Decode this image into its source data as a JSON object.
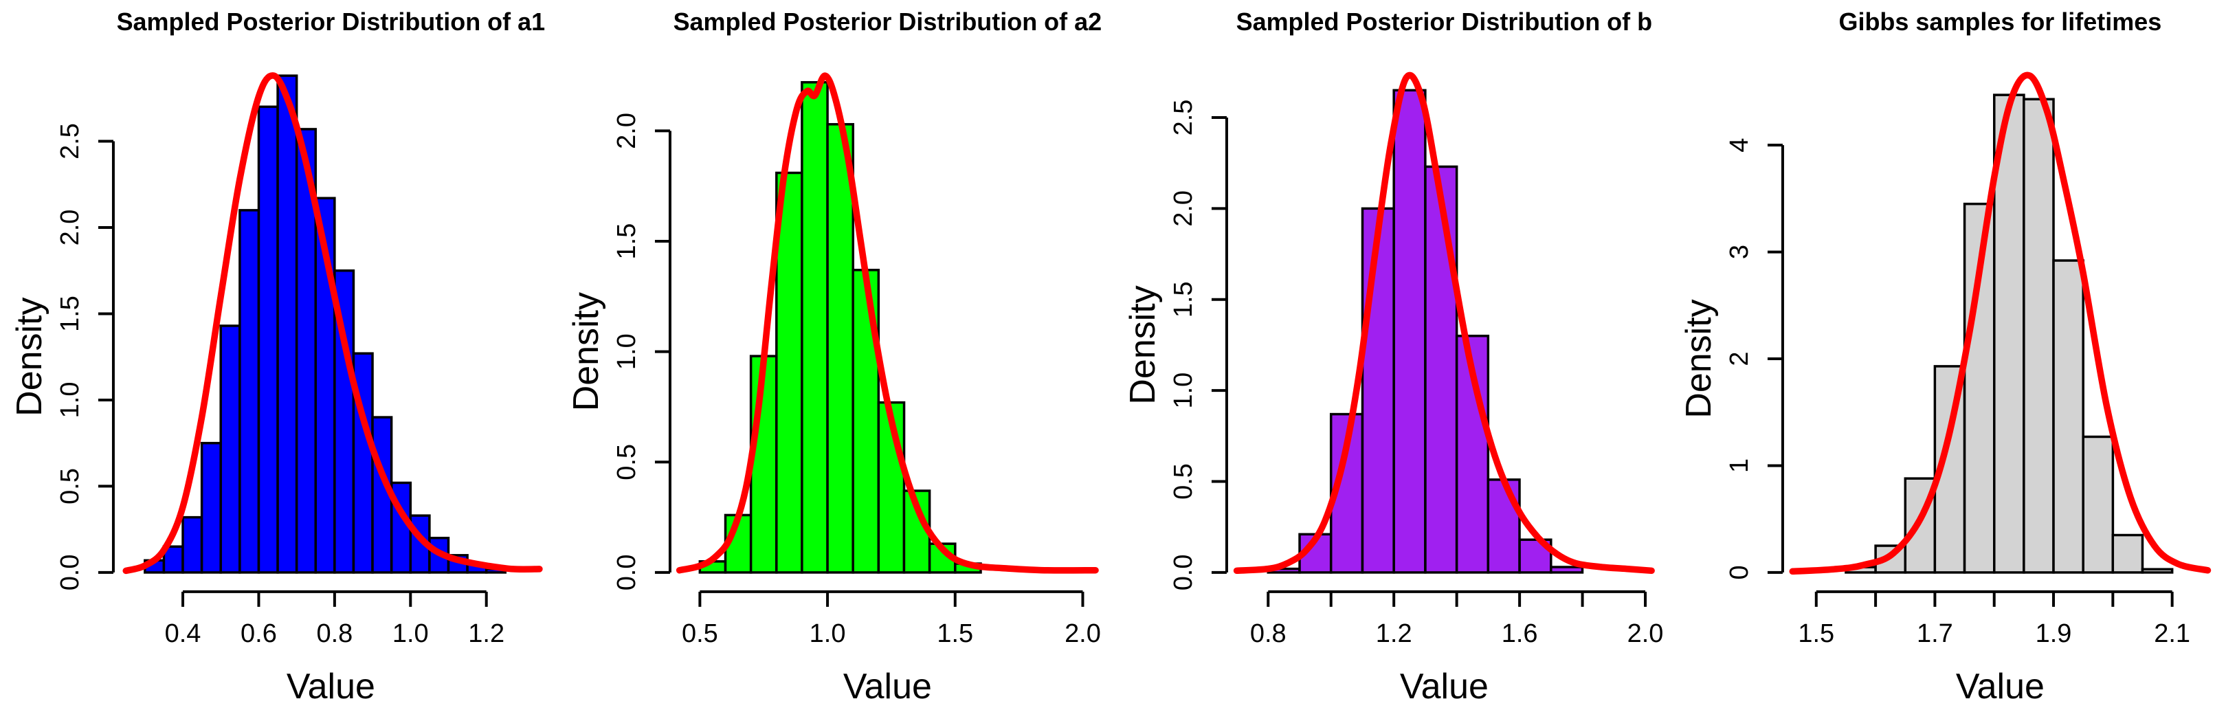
{
  "page": {
    "background": "#FFFFFF",
    "description": "Four R-style histograms with red kernel density curves"
  },
  "chart_data": [
    {
      "type": "bar",
      "subtype": "histogram-with-density",
      "title": "Sampled Posterior Distribution of a1",
      "xlabel": "Value",
      "ylabel": "Density",
      "bar_color": "#0000FF",
      "curve_color": "#FF0000",
      "axis_color": "#000000",
      "bins": {
        "start": 0.3,
        "width": 0.05
      },
      "heights": [
        0.07,
        0.15,
        0.32,
        0.75,
        1.43,
        2.1,
        2.7,
        2.88,
        2.57,
        2.17,
        1.75,
        1.27,
        0.9,
        0.52,
        0.33,
        0.2,
        0.1,
        0.05,
        0.02
      ],
      "x_ticks": [
        {
          "v": 0.4,
          "label": "0.4"
        },
        {
          "v": 0.6,
          "label": "0.6"
        },
        {
          "v": 0.8,
          "label": "0.8"
        },
        {
          "v": 1.0,
          "label": "1.0"
        },
        {
          "v": 1.2,
          "label": "1.2"
        }
      ],
      "y_ticks": [
        {
          "v": 0.0,
          "label": "0.0"
        },
        {
          "v": 0.5,
          "label": "0.5"
        },
        {
          "v": 1.0,
          "label": "1.0"
        },
        {
          "v": 1.5,
          "label": "1.5"
        },
        {
          "v": 2.0,
          "label": "2.0"
        },
        {
          "v": 2.5,
          "label": "2.5"
        }
      ],
      "x_range": [
        0.235,
        1.345
      ],
      "y_top_value": 2.88,
      "curve": [
        [
          0.25,
          0.01
        ],
        [
          0.3,
          0.04
        ],
        [
          0.35,
          0.13
        ],
        [
          0.4,
          0.38
        ],
        [
          0.45,
          0.9
        ],
        [
          0.5,
          1.6
        ],
        [
          0.55,
          2.28
        ],
        [
          0.6,
          2.76
        ],
        [
          0.64,
          2.88
        ],
        [
          0.68,
          2.72
        ],
        [
          0.72,
          2.42
        ],
        [
          0.76,
          2.02
        ],
        [
          0.8,
          1.6
        ],
        [
          0.85,
          1.1
        ],
        [
          0.9,
          0.72
        ],
        [
          0.95,
          0.45
        ],
        [
          1.0,
          0.27
        ],
        [
          1.05,
          0.15
        ],
        [
          1.1,
          0.09
        ],
        [
          1.15,
          0.06
        ],
        [
          1.2,
          0.04
        ],
        [
          1.27,
          0.02
        ],
        [
          1.34,
          0.02
        ]
      ]
    },
    {
      "type": "bar",
      "subtype": "histogram-with-density",
      "title": "Sampled Posterior Distribution of a2",
      "xlabel": "Value",
      "ylabel": "Density",
      "bar_color": "#00FF00",
      "curve_color": "#FF0000",
      "axis_color": "#000000",
      "bins": {
        "start": 0.5,
        "width": 0.1
      },
      "heights": [
        0.05,
        0.26,
        0.98,
        1.81,
        2.22,
        2.03,
        1.37,
        0.77,
        0.37,
        0.13,
        0.04
      ],
      "x_ticks": [
        {
          "v": 0.5,
          "label": "0.5"
        },
        {
          "v": 1.0,
          "label": "1.0"
        },
        {
          "v": 1.5,
          "label": "1.5"
        },
        {
          "v": 2.0,
          "label": "2.0"
        }
      ],
      "y_ticks": [
        {
          "v": 0.0,
          "label": "0.0"
        },
        {
          "v": 0.5,
          "label": "0.5"
        },
        {
          "v": 1.0,
          "label": "1.0"
        },
        {
          "v": 1.5,
          "label": "1.5"
        },
        {
          "v": 2.0,
          "label": "2.0"
        }
      ],
      "x_range": [
        0.41,
        2.06
      ],
      "y_top_value": 2.25,
      "curve": [
        [
          0.42,
          0.01
        ],
        [
          0.5,
          0.03
        ],
        [
          0.56,
          0.07
        ],
        [
          0.62,
          0.16
        ],
        [
          0.68,
          0.38
        ],
        [
          0.73,
          0.75
        ],
        [
          0.78,
          1.3
        ],
        [
          0.83,
          1.8
        ],
        [
          0.88,
          2.1
        ],
        [
          0.92,
          2.18
        ],
        [
          0.95,
          2.16
        ],
        [
          0.99,
          2.25
        ],
        [
          1.03,
          2.15
        ],
        [
          1.08,
          1.88
        ],
        [
          1.13,
          1.5
        ],
        [
          1.18,
          1.12
        ],
        [
          1.23,
          0.8
        ],
        [
          1.28,
          0.55
        ],
        [
          1.33,
          0.36
        ],
        [
          1.38,
          0.22
        ],
        [
          1.44,
          0.12
        ],
        [
          1.5,
          0.06
        ],
        [
          1.58,
          0.03
        ],
        [
          1.68,
          0.02
        ],
        [
          1.85,
          0.01
        ],
        [
          2.05,
          0.01
        ]
      ]
    },
    {
      "type": "bar",
      "subtype": "histogram-with-density",
      "title": "Sampled Posterior Distribution of b",
      "xlabel": "Value",
      "ylabel": "Density",
      "bar_color": "#A020F0",
      "curve_color": "#FF0000",
      "axis_color": "#000000",
      "bins": {
        "start": 0.8,
        "width": 0.1
      },
      "heights": [
        0.02,
        0.21,
        0.87,
        2.0,
        2.65,
        2.23,
        1.3,
        0.51,
        0.18,
        0.03
      ],
      "x_ticks": [
        {
          "v": 0.8,
          "label": "0.8"
        },
        {
          "v": 1.0
        },
        {
          "v": 1.2,
          "label": "1.2"
        },
        {
          "v": 1.4
        },
        {
          "v": 1.6,
          "label": "1.6"
        },
        {
          "v": 1.8
        },
        {
          "v": 2.0,
          "label": "2.0"
        }
      ],
      "y_ticks": [
        {
          "v": 0.0,
          "label": "0.0"
        },
        {
          "v": 0.5,
          "label": "0.5"
        },
        {
          "v": 1.0,
          "label": "1.0"
        },
        {
          "v": 1.5,
          "label": "1.5"
        },
        {
          "v": 2.0,
          "label": "2.0"
        },
        {
          "v": 2.5,
          "label": "2.5"
        }
      ],
      "x_range": [
        0.69,
        2.03
      ],
      "y_top_value": 2.73,
      "curve": [
        [
          0.7,
          0.01
        ],
        [
          0.8,
          0.02
        ],
        [
          0.86,
          0.05
        ],
        [
          0.92,
          0.12
        ],
        [
          0.98,
          0.28
        ],
        [
          1.04,
          0.62
        ],
        [
          1.09,
          1.1
        ],
        [
          1.14,
          1.75
        ],
        [
          1.19,
          2.35
        ],
        [
          1.24,
          2.72
        ],
        [
          1.29,
          2.6
        ],
        [
          1.34,
          2.15
        ],
        [
          1.39,
          1.65
        ],
        [
          1.44,
          1.18
        ],
        [
          1.49,
          0.82
        ],
        [
          1.54,
          0.55
        ],
        [
          1.6,
          0.33
        ],
        [
          1.66,
          0.19
        ],
        [
          1.72,
          0.1
        ],
        [
          1.78,
          0.05
        ],
        [
          1.86,
          0.03
        ],
        [
          1.94,
          0.02
        ],
        [
          2.02,
          0.01
        ]
      ]
    },
    {
      "type": "bar",
      "subtype": "histogram-with-density",
      "title": "Gibbs samples for lifetimes",
      "xlabel": "Value",
      "ylabel": "Density",
      "bar_color": "#D3D3D3",
      "curve_color": "#FF0000",
      "axis_color": "#000000",
      "bins": {
        "start": 1.55,
        "width": 0.05
      },
      "heights": [
        0.05,
        0.25,
        0.88,
        1.93,
        3.45,
        4.47,
        4.43,
        2.92,
        1.27,
        0.35,
        0.03
      ],
      "x_ticks": [
        {
          "v": 1.5,
          "label": "1.5"
        },
        {
          "v": 1.6
        },
        {
          "v": 1.7,
          "label": "1.7"
        },
        {
          "v": 1.8
        },
        {
          "v": 1.9,
          "label": "1.9"
        },
        {
          "v": 2.0
        },
        {
          "v": 2.1,
          "label": "2.1"
        }
      ],
      "y_ticks": [
        {
          "v": 0,
          "label": "0"
        },
        {
          "v": 1,
          "label": "1"
        },
        {
          "v": 2,
          "label": "2"
        },
        {
          "v": 3,
          "label": "3"
        },
        {
          "v": 4,
          "label": "4"
        }
      ],
      "x_range": [
        1.455,
        2.165
      ],
      "y_top_value": 4.65,
      "curve": [
        [
          1.46,
          0.01
        ],
        [
          1.53,
          0.03
        ],
        [
          1.58,
          0.07
        ],
        [
          1.63,
          0.18
        ],
        [
          1.68,
          0.55
        ],
        [
          1.72,
          1.2
        ],
        [
          1.76,
          2.3
        ],
        [
          1.8,
          3.7
        ],
        [
          1.83,
          4.45
        ],
        [
          1.86,
          4.65
        ],
        [
          1.89,
          4.3
        ],
        [
          1.92,
          3.6
        ],
        [
          1.95,
          2.8
        ],
        [
          1.99,
          1.55
        ],
        [
          2.03,
          0.7
        ],
        [
          2.07,
          0.25
        ],
        [
          2.11,
          0.08
        ],
        [
          2.16,
          0.02
        ]
      ]
    }
  ]
}
